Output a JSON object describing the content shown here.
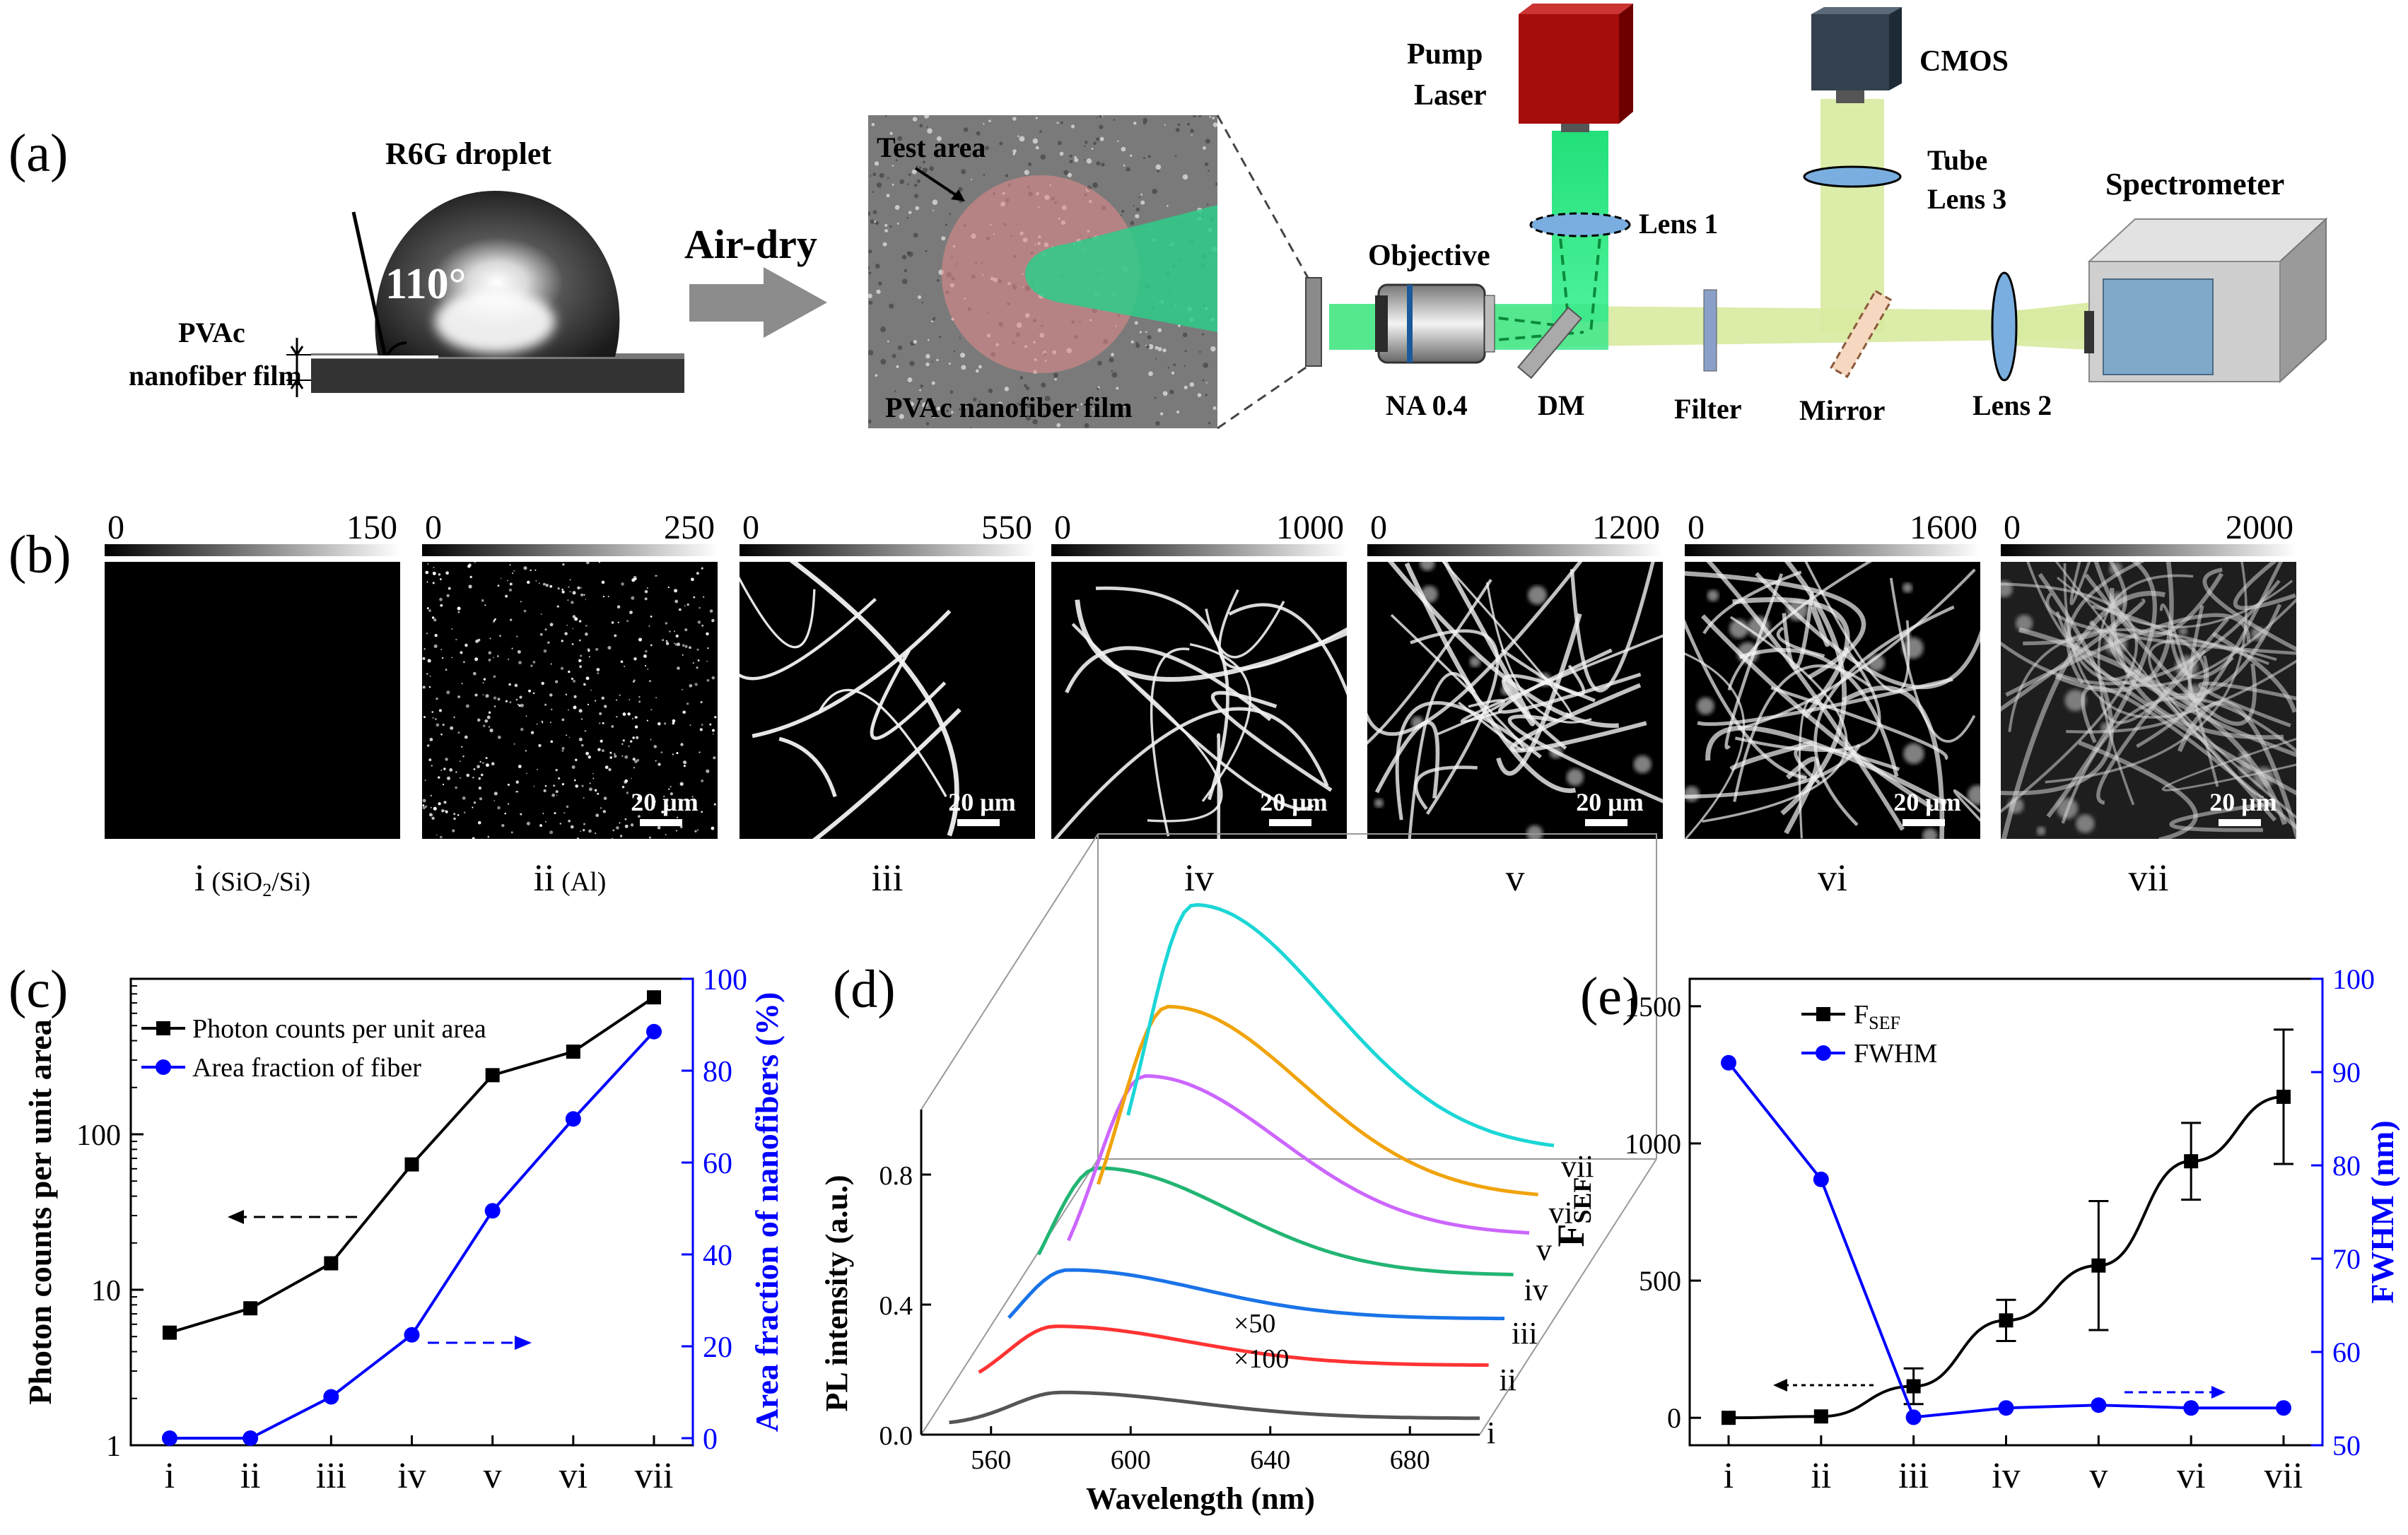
{
  "panels": {
    "a": {
      "label": "(a)",
      "droplet_title": "R6G droplet",
      "contact_angle": "110°",
      "film_label_line1": "PVAc",
      "film_label_line2": "nanofiber film",
      "arrow_text": "Air-dry",
      "micro_test_area": "Test area",
      "micro_film": "PVAc nanofiber film",
      "setup": {
        "pump_line1": "Pump",
        "pump_line2": "Laser",
        "cmos": "CMOS",
        "tube_line1": "Tube",
        "tube_line2": "Lens 3",
        "spectrometer": "Spectrometer",
        "lens1": "Lens 1",
        "objective": "Objective",
        "na": "NA 0.4",
        "dm": "DM",
        "filter": "Filter",
        "mirror": "Mirror",
        "lens2": "Lens 2"
      }
    },
    "b": {
      "label": "(b)",
      "images": [
        {
          "min": "0",
          "max": "150",
          "caption": "i",
          "sub": "(SiO",
          "sub2": "2",
          "sub3": "/Si)",
          "scale": ""
        },
        {
          "min": "0",
          "max": "250",
          "caption": "ii",
          "sub": "(Al)",
          "sub2": "",
          "sub3": "",
          "scale": "20 μm"
        },
        {
          "min": "0",
          "max": "550",
          "caption": "iii",
          "sub": "",
          "sub2": "",
          "sub3": "",
          "scale": "20 μm"
        },
        {
          "min": "0",
          "max": "1000",
          "caption": "iv",
          "sub": "",
          "sub2": "",
          "sub3": "",
          "scale": "20 μm"
        },
        {
          "min": "0",
          "max": "1200",
          "caption": "v",
          "sub": "",
          "sub2": "",
          "sub3": "",
          "scale": "20 μm"
        },
        {
          "min": "0",
          "max": "1600",
          "caption": "vi",
          "sub": "",
          "sub2": "",
          "sub3": "",
          "scale": "20 μm"
        },
        {
          "min": "0",
          "max": "2000",
          "caption": "vii",
          "sub": "",
          "sub2": "",
          "sub3": "",
          "scale": "20 μm"
        }
      ]
    },
    "c": {
      "label": "(c)"
    },
    "d": {
      "label": "(d)"
    },
    "e": {
      "label": "(e)"
    }
  },
  "colors": {
    "black": "#000000",
    "blue": "#0000ff",
    "grey": "#555555"
  },
  "chart_data": [
    {
      "id": "c",
      "type": "line",
      "categories": [
        "i",
        "ii",
        "iii",
        "iv",
        "v",
        "vi",
        "vii"
      ],
      "ylabel": "Photon counts per unit area",
      "y2label": "Area fraction of nanofibers (%)",
      "ylim": [
        1,
        1000
      ],
      "yscale": "log",
      "y2lim": [
        0,
        100
      ],
      "yticks": [
        "1",
        "10",
        "100"
      ],
      "y2ticks": [
        "0",
        "20",
        "40",
        "60",
        "80",
        "100"
      ],
      "series": [
        {
          "name": "Photon counts per unit area",
          "axis": "left",
          "color": "#000000",
          "marker": "square",
          "values": [
            5.3,
            7.6,
            14.8,
            64,
            240,
            340,
            760
          ]
        },
        {
          "name": "Area fraction of fiber",
          "axis": "right",
          "color": "#0000ff",
          "marker": "circle",
          "values": [
            0,
            0,
            9,
            22.5,
            49.5,
            69.5,
            88.5
          ]
        }
      ],
      "legend": "top-left"
    },
    {
      "id": "d",
      "type": "line",
      "ylabel": "PL intensity (a.u.)",
      "xlabel": "Wavelength (nm)",
      "xlim": [
        540,
        700
      ],
      "ylim": [
        0,
        1.0
      ],
      "xticks": [
        "560",
        "600",
        "640",
        "680"
      ],
      "yticks": [
        "0.0",
        "0.4",
        "0.8"
      ],
      "annotations": [
        "×50",
        "×100"
      ],
      "series": [
        {
          "name": "i",
          "color": "#555555",
          "peak_x": 580,
          "peak_y": 0.13,
          "base_y": 0.05
        },
        {
          "name": "ii",
          "color": "#ff3333",
          "peak_x": 575,
          "peak_y": 0.32,
          "base_y": 0.2
        },
        {
          "name": "iii",
          "color": "#1a73e8",
          "peak_x": 575,
          "peak_y": 0.48,
          "base_y": 0.33
        },
        {
          "name": "iv",
          "color": "#22b573",
          "peak_x": 580,
          "peak_y": 0.78,
          "base_y": 0.45
        },
        {
          "name": "v",
          "color": "#cc66ff",
          "peak_x": 590,
          "peak_y": 1.05,
          "base_y": 0.56
        },
        {
          "name": "vi",
          "color": "#f0a30a",
          "peak_x": 593,
          "peak_y": 1.25,
          "base_y": 0.66
        },
        {
          "name": "vii",
          "color": "#1cd6d6",
          "peak_x": 597,
          "peak_y": 1.55,
          "base_y": 0.79
        }
      ]
    },
    {
      "id": "e",
      "type": "line",
      "categories": [
        "i",
        "ii",
        "iii",
        "iv",
        "v",
        "vi",
        "vii"
      ],
      "ylabel": "F",
      "ylabel_sub": "SEF",
      "y2label": "FWHM (nm)",
      "ylim": [
        -100,
        1600
      ],
      "y2lim": [
        50,
        100
      ],
      "yticks": [
        "0",
        "500",
        "1000",
        "1500"
      ],
      "y2ticks": [
        "50",
        "60",
        "70",
        "80",
        "90",
        "100"
      ],
      "series": [
        {
          "name": "F",
          "name_sub": "SEF",
          "axis": "left",
          "color": "#000000",
          "marker": "square",
          "values": [
            0,
            5,
            115,
            355,
            555,
            935,
            1170
          ],
          "errors": [
            0,
            0,
            65,
            75,
            235,
            140,
            245
          ]
        },
        {
          "name": "FWHM",
          "axis": "right",
          "color": "#0000ff",
          "marker": "circle",
          "values": [
            91,
            78.5,
            53,
            54,
            54.3,
            54,
            54
          ]
        }
      ],
      "legend": "top-left"
    }
  ]
}
